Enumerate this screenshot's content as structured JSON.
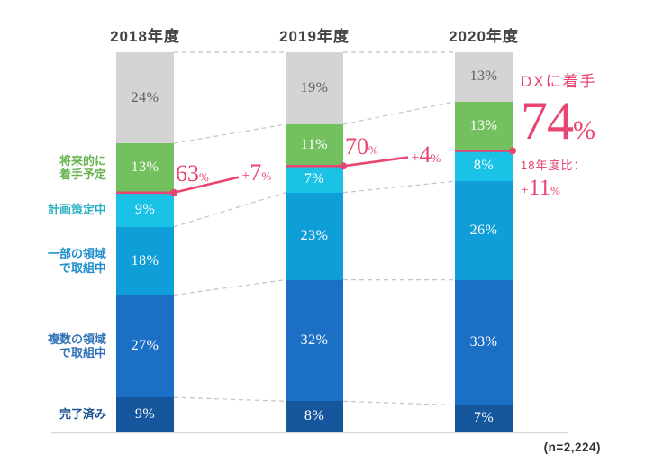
{
  "chart_data": {
    "type": "stacked-bar-100",
    "unit": "%",
    "categories": [
      "2018年度",
      "2019年度",
      "2020年度"
    ],
    "ylim": [
      0,
      100
    ],
    "grid": false,
    "legend_position": "left",
    "series": [
      {
        "name": "",
        "label_lines": [],
        "color": "#d4d4d4",
        "label_color": "#5e5e5e",
        "text_color": "#5e5e5e",
        "values": [
          24,
          19,
          13
        ]
      },
      {
        "name": "将来的に着手予定",
        "label_lines": [
          "将来的に",
          "着手予定"
        ],
        "color": "#72c05e",
        "label_color": "#68b350",
        "values": [
          13,
          11,
          13
        ]
      },
      {
        "name": "計画策定中",
        "label_lines": [
          "計画策定中"
        ],
        "color": "#1ac3e5",
        "label_color": "#29aec4",
        "values": [
          9,
          7,
          8
        ]
      },
      {
        "name": "一部の領域で取組中",
        "label_lines": [
          "一部の領域",
          "で取組中"
        ],
        "color": "#109ed8",
        "label_color": "#1e8ecb",
        "values": [
          18,
          23,
          26
        ]
      },
      {
        "name": "複数の領域で取組中",
        "label_lines": [
          "複数の領域",
          "で取組中"
        ],
        "color": "#1b6fc4",
        "label_color": "#3273b8",
        "values": [
          27,
          32,
          33
        ]
      },
      {
        "name": "完了済み",
        "label_lines": [
          "完了済み"
        ],
        "color": "#15569c",
        "label_color": "#1d5190",
        "values": [
          9,
          8,
          7
        ]
      }
    ],
    "trend_line": {
      "color": "#e84570",
      "values_pct": [
        63,
        70,
        74
      ],
      "rate_labels": [
        "63",
        "70"
      ],
      "delta_labels": [
        "+7",
        "+4"
      ]
    },
    "annotation": {
      "title": "DXに着手",
      "value": "74",
      "unit": "%",
      "note_label": "18年度比：",
      "note_value": "+11",
      "note_unit": "%"
    },
    "footnote": "(n=2,224)"
  }
}
